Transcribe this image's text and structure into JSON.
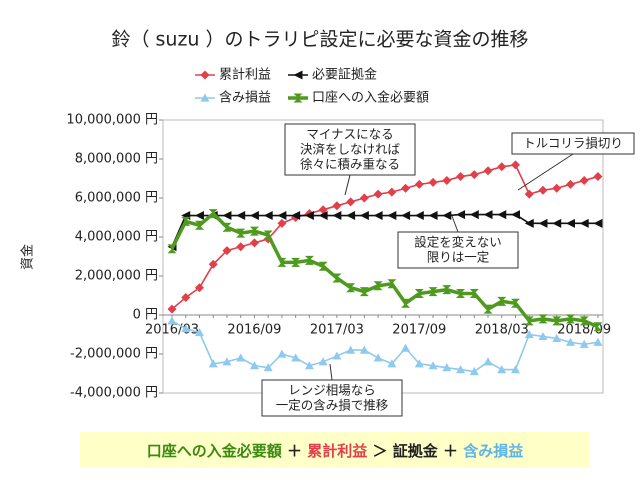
{
  "chart_data": {
    "type": "line",
    "title": "鈴（ suzu ）のトラリピ設定に必要な資金の推移",
    "y_label": "資金",
    "categories": [
      "2016/03",
      null,
      null,
      null,
      null,
      null,
      "2016/09",
      null,
      null,
      null,
      null,
      null,
      "2017/03",
      null,
      null,
      null,
      null,
      null,
      "2017/09",
      null,
      null,
      null,
      null,
      null,
      "2018/03",
      null,
      null,
      null,
      null,
      null,
      "2018/09",
      null
    ],
    "ylim": [
      -4000000,
      10000000
    ],
    "yticks": [
      {
        "value": -4000000,
        "label": "-4,000,000 円"
      },
      {
        "value": -2000000,
        "label": "-2,000,000 円"
      },
      {
        "value": 0,
        "label": "0 円"
      },
      {
        "value": 2000000,
        "label": "2,000,000 円"
      },
      {
        "value": 4000000,
        "label": "4,000,000 円"
      },
      {
        "value": 6000000,
        "label": "6,000,000 円"
      },
      {
        "value": 8000000,
        "label": "8,000,000 円"
      },
      {
        "value": 10000000,
        "label": "10,000,000 円"
      }
    ],
    "grid": false,
    "series": [
      {
        "name": "累計利益",
        "color": "#e0404a",
        "marker": "diamond",
        "values": [
          300000,
          900000,
          1400000,
          2600000,
          3300000,
          3500000,
          3700000,
          3900000,
          4700000,
          5000000,
          5200000,
          5400000,
          5600000,
          5800000,
          6000000,
          6200000,
          6300000,
          6500000,
          6700000,
          6800000,
          6900000,
          7100000,
          7200000,
          7400000,
          7600000,
          7700000,
          6200000,
          6400000,
          6500000,
          6700000,
          6900000,
          7100000
        ]
      },
      {
        "name": "必要証拠金",
        "color": "#111111",
        "marker": "left-triangle",
        "values": [
          3500000,
          5100000,
          5100000,
          5100000,
          5100000,
          5100000,
          5100000,
          5100000,
          5100000,
          5100000,
          5100000,
          5100000,
          5100000,
          5100000,
          5100000,
          5100000,
          5100000,
          5100000,
          5100000,
          5100000,
          5100000,
          5150000,
          5150000,
          5150000,
          5150000,
          5150000,
          4700000,
          4700000,
          4700000,
          4700000,
          4700000,
          4700000
        ]
      },
      {
        "name": "含み損益",
        "color": "#8ec9ee",
        "marker": "up-triangle",
        "values": [
          -300000,
          -700000,
          -900000,
          -2500000,
          -2400000,
          -2200000,
          -2600000,
          -2700000,
          -2000000,
          -2200000,
          -2600000,
          -2400000,
          -2100000,
          -1800000,
          -1800000,
          -2200000,
          -2500000,
          -1700000,
          -2500000,
          -2600000,
          -2700000,
          -2800000,
          -2900000,
          -2400000,
          -2800000,
          -2800000,
          -1000000,
          -1100000,
          -1200000,
          -1400000,
          -1500000,
          -1400000
        ]
      },
      {
        "name": "口座への入金必要額",
        "color": "#4e9a1e",
        "marker": "hourglass",
        "values": [
          3400000,
          4800000,
          4600000,
          5200000,
          4500000,
          4200000,
          4300000,
          4100000,
          2700000,
          2700000,
          2800000,
          2500000,
          1900000,
          1400000,
          1200000,
          1500000,
          1600000,
          600000,
          1100000,
          1200000,
          1300000,
          1100000,
          1100000,
          300000,
          700000,
          600000,
          -300000,
          -200000,
          -300000,
          -200000,
          -300000,
          -600000
        ]
      }
    ],
    "annotations": [
      {
        "lines": [
          "マイナスになる",
          "決済をしなければ",
          "徐々に積み重なる"
        ]
      },
      {
        "lines": [
          "トルコリラ損切り"
        ]
      },
      {
        "lines": [
          "設定を変えない",
          "限りは一定"
        ]
      },
      {
        "lines": [
          "レンジ相場なら",
          "一定の含み損で推移"
        ]
      }
    ],
    "formula": [
      {
        "text": "口座への入金必要額",
        "color": "#3a8a10"
      },
      {
        "text": " ＋ ",
        "color": "#222222"
      },
      {
        "text": "累計利益",
        "color": "#e0404a"
      },
      {
        "text": " ＞ ",
        "color": "#222222"
      },
      {
        "text": "証拠金",
        "color": "#222222"
      },
      {
        "text": " ＋ ",
        "color": "#222222"
      },
      {
        "text": "含み損益",
        "color": "#5fb4e8"
      }
    ]
  }
}
